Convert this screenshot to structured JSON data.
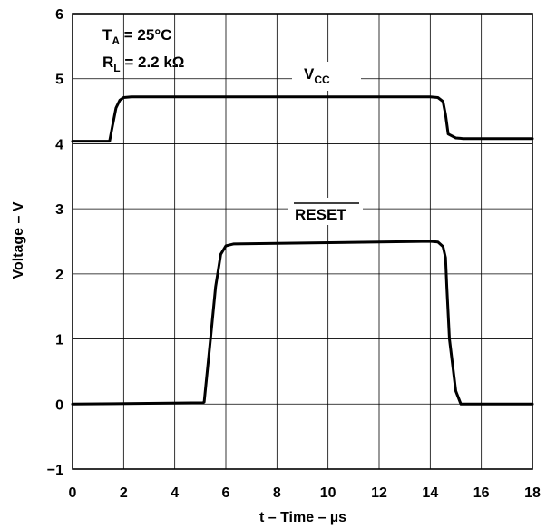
{
  "chart_data": {
    "type": "line",
    "xlabel": "t – Time – µs",
    "ylabel": "Voltage – V",
    "xlim": [
      0,
      18
    ],
    "ylim": [
      -1,
      6
    ],
    "x_ticks": [
      "0",
      "2",
      "4",
      "6",
      "8",
      "10",
      "12",
      "14",
      "16",
      "18"
    ],
    "y_ticks": [
      "6",
      "5",
      "4",
      "3",
      "2",
      "1",
      "0",
      "−1"
    ],
    "grid": true,
    "conditions": {
      "ta": {
        "main": "T",
        "sub": "A",
        "rest": " = 25°C"
      },
      "rl": {
        "main": "R",
        "sub": "L",
        "rest": " = 2.2 kΩ"
      }
    },
    "series": [
      {
        "name": "VCC",
        "label_main": "V",
        "label_sub": "CC",
        "x": [
          0,
          1.45,
          1.55,
          1.7,
          1.85,
          2.0,
          2.3,
          14.0,
          14.3,
          14.5,
          14.6,
          14.7,
          15.0,
          15.3,
          18
        ],
        "y": [
          4.04,
          4.04,
          4.25,
          4.55,
          4.67,
          4.71,
          4.72,
          4.72,
          4.71,
          4.65,
          4.45,
          4.15,
          4.09,
          4.08,
          4.08
        ]
      },
      {
        "name": "RESET",
        "label_main": "RESET",
        "label_overline": true,
        "x": [
          0,
          5.1,
          5.15,
          5.4,
          5.6,
          5.8,
          6.0,
          6.3,
          14.0,
          14.3,
          14.5,
          14.6,
          14.65,
          14.75,
          15.0,
          15.2,
          18
        ],
        "y": [
          0.0,
          0.02,
          0.03,
          1.0,
          1.8,
          2.3,
          2.43,
          2.46,
          2.5,
          2.49,
          2.42,
          2.25,
          1.8,
          1.0,
          0.2,
          0.0,
          0.0
        ]
      }
    ]
  }
}
